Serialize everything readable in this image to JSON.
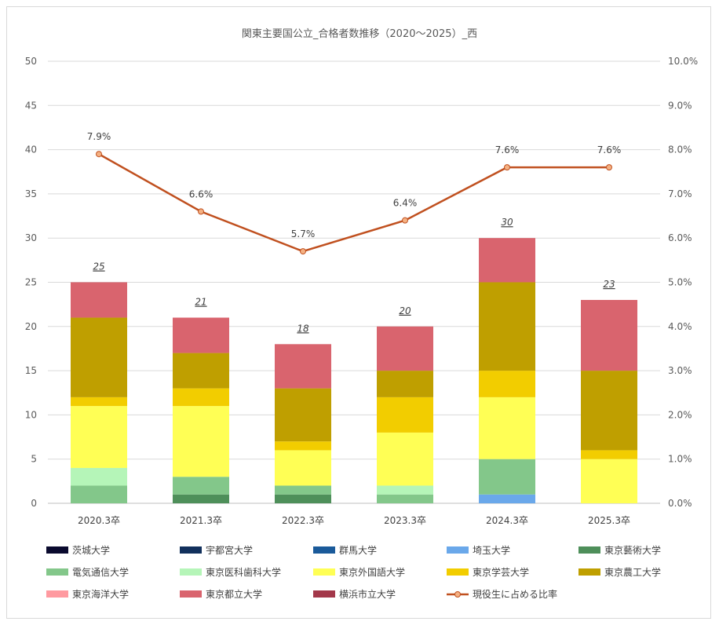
{
  "chart_data": {
    "type": "bar",
    "stacked": true,
    "title": "関東主要国公立_合格者数推移（2020～2025）_西",
    "categories": [
      "2020.3卒",
      "2021.3卒",
      "2022.3卒",
      "2023.3卒",
      "2024.3卒",
      "2025.3卒"
    ],
    "ylim": [
      0,
      50
    ],
    "yticks": [
      "0",
      "5",
      "10",
      "15",
      "20",
      "25",
      "30",
      "35",
      "40",
      "45",
      "50"
    ],
    "y2lim": [
      0,
      10
    ],
    "y2ticks": [
      "0.0%",
      "1.0%",
      "2.0%",
      "3.0%",
      "4.0%",
      "5.0%",
      "6.0%",
      "7.0%",
      "8.0%",
      "9.0%",
      "10.0%"
    ],
    "grid": true,
    "legend_position": "bottom",
    "series": [
      {
        "name": "茨城大学",
        "color": "#0a0a2e",
        "values": [
          0,
          0,
          0,
          0,
          0,
          0
        ]
      },
      {
        "name": "宇都宮大学",
        "color": "#12305c",
        "values": [
          0,
          0,
          0,
          0,
          0,
          0
        ]
      },
      {
        "name": "群馬大学",
        "color": "#1a5a9a",
        "values": [
          0,
          0,
          0,
          0,
          0,
          0
        ]
      },
      {
        "name": "埼玉大学",
        "color": "#6aa8ea",
        "values": [
          0,
          0,
          0,
          0,
          1,
          0
        ]
      },
      {
        "name": "東京藝術大学",
        "color": "#4e8f5a",
        "values": [
          0,
          1,
          1,
          0,
          0,
          0
        ]
      },
      {
        "name": "電気通信大学",
        "color": "#83c78a",
        "values": [
          2,
          2,
          1,
          1,
          4,
          0
        ]
      },
      {
        "name": "東京医科歯科大学",
        "color": "#b5f5b8",
        "values": [
          2,
          0,
          0,
          1,
          0,
          0
        ]
      },
      {
        "name": "東京外国語大学",
        "color": "#ffff55",
        "values": [
          7,
          8,
          4,
          6,
          7,
          5
        ]
      },
      {
        "name": "東京学芸大学",
        "color": "#f2cd00",
        "values": [
          1,
          2,
          1,
          4,
          3,
          1
        ]
      },
      {
        "name": "東京農工大学",
        "color": "#bf9f00",
        "values": [
          9,
          4,
          6,
          3,
          10,
          9
        ]
      },
      {
        "name": "東京海洋大学",
        "color": "#ff9aa0",
        "values": [
          0,
          0,
          0,
          0,
          0,
          0
        ]
      },
      {
        "name": "東京都立大学",
        "color": "#d9646e",
        "values": [
          4,
          4,
          5,
          5,
          5,
          8
        ]
      },
      {
        "name": "横浜市立大学",
        "color": "#a3384a",
        "values": [
          0,
          0,
          0,
          0,
          0,
          0
        ]
      }
    ],
    "totals": [
      "25",
      "21",
      "18",
      "20",
      "30",
      "23"
    ],
    "line": {
      "name": "現役生に占める比率",
      "color": "#c0501f",
      "axis": "secondary",
      "values": [
        7.9,
        6.6,
        5.7,
        6.4,
        7.6,
        7.6
      ],
      "labels": [
        "7.9%",
        "6.6%",
        "5.7%",
        "6.4%",
        "7.6%",
        "7.6%"
      ]
    }
  }
}
